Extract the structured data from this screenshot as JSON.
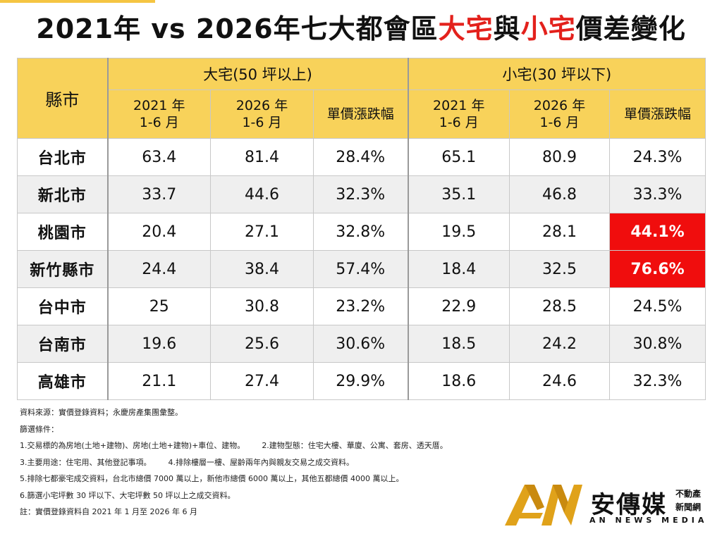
{
  "title": {
    "prefix": "2021年 vs 2026年七大都會區",
    "big": "大宅",
    "mid": "與",
    "small": "小宅",
    "suffix": "價差變化"
  },
  "table": {
    "city_header": "縣市",
    "big_group": "大宅(50 坪以上)",
    "small_group": "小宅(30 坪以下)",
    "col_2021_line1": "2021 年",
    "col_2021_line2": "1-6 月",
    "col_2026_line1": "2026 年",
    "col_2026_line2": "1-6 月",
    "col_change": "單價漲跌幅",
    "rows": [
      {
        "city": "台北市",
        "b21": "63.4",
        "b26": "81.4",
        "bchg": "28.4%",
        "s21": "65.1",
        "s26": "80.9",
        "schg": "24.3%"
      },
      {
        "city": "新北市",
        "b21": "33.7",
        "b26": "44.6",
        "bchg": "32.3%",
        "s21": "35.1",
        "s26": "46.8",
        "schg": "33.3%"
      },
      {
        "city": "桃園市",
        "b21": "20.4",
        "b26": "27.1",
        "bchg": "32.8%",
        "s21": "19.5",
        "s26": "28.1",
        "schg": "44.1%"
      },
      {
        "city": "新竹縣市",
        "b21": "24.4",
        "b26": "38.4",
        "bchg": "57.4%",
        "s21": "18.4",
        "s26": "32.5",
        "schg": "76.6%"
      },
      {
        "city": "台中市",
        "b21": "25",
        "b26": "30.8",
        "bchg": "23.2%",
        "s21": "22.9",
        "s26": "28.5",
        "schg": "24.5%"
      },
      {
        "city": "台南市",
        "b21": "19.6",
        "b26": "25.6",
        "bchg": "30.6%",
        "s21": "18.5",
        "s26": "24.2",
        "schg": "30.8%"
      },
      {
        "city": "高雄市",
        "b21": "21.1",
        "b26": "27.4",
        "bchg": "29.9%",
        "s21": "18.6",
        "s26": "24.6",
        "schg": "32.3%"
      }
    ],
    "highlight_color": "#f00d0d",
    "header_color": "#f8d25a"
  },
  "notes": {
    "source": "資料來源：實價登錄資料；永慶房產集團彙整。",
    "filter_title": "篩選條件：",
    "c1": "1.交易標的為房地(土地+建物)、房地(土地+建物)+車位、建物。",
    "c2": "2.建物型態：住宅大樓、華廈、公寓、套房、透天厝。",
    "c3": "3.主要用途：住宅用、其他登記事項。",
    "c4": "4.排除樓層一樓、屋齡兩年內與親友交易之成交資料。",
    "c5": "5.排除七都豪宅成交資料，台北市總價 7000 萬以上，新他市總價 6000 萬以上，其他五都總價 4000 萬以上。",
    "c6": "6.篩選小宅坪數 30 坪以下、大宅坪數 50 坪以上之成交資料。",
    "footnote": "註：實價登錄資料自 2021 年 1 月至 2026 年 6 月"
  },
  "logo": {
    "name": "安傳媒",
    "sub1": "不動產",
    "sub2": "新聞網",
    "english": "AN NEWS MEDIA",
    "mark_icon": "an-logo-mark-icon",
    "gold": "#e0a21a"
  }
}
